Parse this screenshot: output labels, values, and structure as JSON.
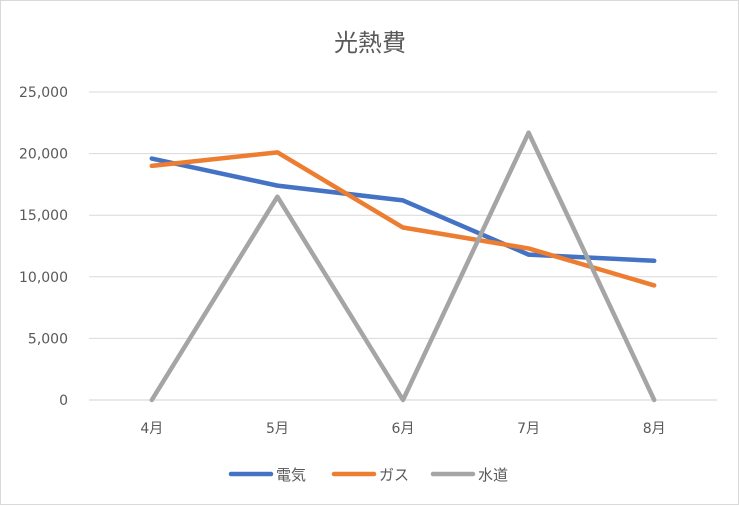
{
  "chart_data": {
    "type": "line",
    "title": "光熱費",
    "categories": [
      "4月",
      "5月",
      "6月",
      "7月",
      "8月"
    ],
    "ylim": [
      0,
      25000
    ],
    "yticks": [
      "0",
      "5,000",
      "10,000",
      "15,000",
      "20,000",
      "25,000"
    ],
    "ytick_values": [
      0,
      5000,
      10000,
      15000,
      20000,
      25000
    ],
    "grid": true,
    "legend_position": "bottom",
    "series": [
      {
        "name": "電気",
        "color": "#4472C4",
        "values": [
          19600,
          17400,
          16200,
          11800,
          11300
        ]
      },
      {
        "name": "ガス",
        "color": "#ED7D31",
        "values": [
          19000,
          20100,
          14000,
          12300,
          9300
        ]
      },
      {
        "name": "水道",
        "color": "#A5A5A5",
        "values": [
          0,
          16500,
          0,
          21700,
          0
        ]
      }
    ]
  }
}
